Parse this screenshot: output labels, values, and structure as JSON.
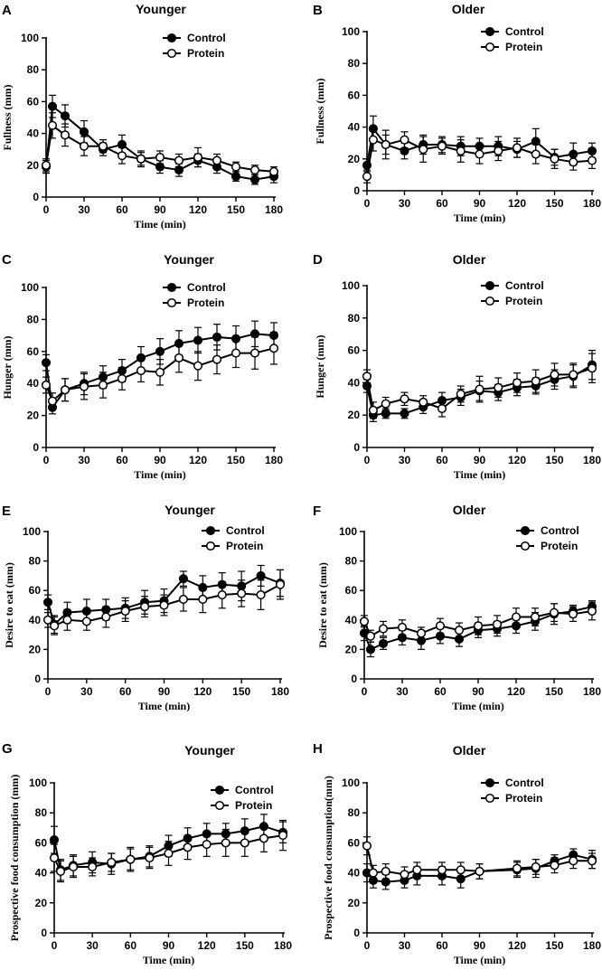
{
  "figure": {
    "legend_labels": [
      "Control",
      "Protein"
    ],
    "colors": {
      "axis": "#000000",
      "control_fill": "#000000",
      "protein_fill": "#ffffff"
    }
  },
  "chart_data": [
    {
      "id": "A",
      "letter": "A",
      "type": "line",
      "title": "Younger",
      "xlabel": "Time (min)",
      "ylabel": "Fullness (mm)",
      "xlim": [
        0,
        180
      ],
      "ylim": [
        0,
        100
      ],
      "xticks": [
        0,
        30,
        60,
        90,
        120,
        150,
        180
      ],
      "yticks": [
        0,
        20,
        40,
        60,
        80,
        100
      ],
      "x": [
        0,
        5,
        15,
        30,
        45,
        60,
        75,
        90,
        105,
        120,
        135,
        150,
        165,
        180
      ],
      "series": [
        {
          "name": "Control",
          "marker": "filled",
          "values": [
            19,
            57,
            51,
            41,
            30,
            33,
            24,
            19,
            17,
            23,
            19,
            13,
            11,
            13
          ],
          "errors": [
            4,
            7,
            7,
            7,
            4,
            6,
            5,
            4,
            4,
            4,
            4,
            3,
            3,
            4
          ]
        },
        {
          "name": "Protein",
          "marker": "open",
          "values": [
            20,
            45,
            39,
            32,
            32,
            26,
            24,
            25,
            23,
            25,
            23,
            19,
            17,
            16
          ],
          "errors": [
            4,
            8,
            7,
            6,
            4,
            5,
            4,
            4,
            4,
            6,
            4,
            3,
            3,
            3
          ]
        }
      ],
      "legend_pos": "top-right"
    },
    {
      "id": "B",
      "letter": "B",
      "type": "line",
      "title": "Older",
      "xlabel": "Time (min)",
      "ylabel": "Fullness (mm)",
      "xlim": [
        0,
        180
      ],
      "ylim": [
        0,
        100
      ],
      "xticks": [
        0,
        30,
        60,
        90,
        120,
        150,
        180
      ],
      "yticks": [
        0,
        20,
        40,
        60,
        80,
        100
      ],
      "x": [
        0,
        5,
        15,
        30,
        45,
        60,
        75,
        90,
        105,
        120,
        135,
        150,
        165,
        180
      ],
      "series": [
        {
          "name": "Control",
          "marker": "filled",
          "values": [
            16,
            39,
            29,
            25,
            29,
            29,
            28,
            28,
            28,
            26,
            31,
            21,
            23,
            25
          ],
          "errors": [
            4,
            8,
            6,
            5,
            6,
            5,
            6,
            5,
            6,
            5,
            8,
            5,
            7,
            5
          ]
        },
        {
          "name": "Protein",
          "marker": "open",
          "values": [
            9,
            32,
            29,
            32,
            26,
            28,
            25,
            23,
            25,
            27,
            23,
            20,
            18,
            19
          ],
          "errors": [
            4,
            7,
            9,
            5,
            8,
            5,
            7,
            6,
            6,
            6,
            6,
            6,
            5,
            5
          ]
        }
      ],
      "legend_pos": "top-right"
    },
    {
      "id": "C",
      "letter": "C",
      "type": "line",
      "title": "Younger",
      "xlabel": "Time (min)",
      "ylabel": "Hunger (mm)",
      "xlim": [
        0,
        180
      ],
      "ylim": [
        0,
        100
      ],
      "xticks": [
        0,
        30,
        60,
        90,
        120,
        150,
        180
      ],
      "yticks": [
        0,
        20,
        40,
        60,
        80,
        100
      ],
      "x": [
        0,
        5,
        15,
        30,
        45,
        60,
        75,
        90,
        105,
        120,
        135,
        150,
        165,
        180
      ],
      "series": [
        {
          "name": "Control",
          "marker": "filled",
          "values": [
            53,
            25,
            36,
            40,
            44,
            48,
            56,
            60,
            65,
            67,
            69,
            68,
            71,
            70
          ],
          "errors": [
            5,
            4,
            7,
            7,
            7,
            7,
            7,
            8,
            8,
            8,
            8,
            8,
            8,
            8
          ]
        },
        {
          "name": "Protein",
          "marker": "open",
          "values": [
            39,
            29,
            36,
            38,
            39,
            43,
            48,
            47,
            56,
            51,
            55,
            59,
            59,
            62
          ],
          "errors": [
            5,
            5,
            7,
            8,
            8,
            7,
            7,
            8,
            9,
            9,
            9,
            9,
            10,
            10
          ]
        }
      ],
      "legend_pos": "top-right"
    },
    {
      "id": "D",
      "letter": "D",
      "type": "line",
      "title": "Older",
      "xlabel": "Time (min)",
      "ylabel": "Hunger (mm)",
      "xlim": [
        0,
        180
      ],
      "ylim": [
        0,
        100
      ],
      "xticks": [
        0,
        30,
        60,
        90,
        120,
        150,
        180
      ],
      "yticks": [
        0,
        20,
        40,
        60,
        80,
        100
      ],
      "x": [
        0,
        5,
        15,
        30,
        45,
        60,
        75,
        90,
        105,
        120,
        135,
        150,
        165,
        180
      ],
      "series": [
        {
          "name": "Control",
          "marker": "filled",
          "values": [
            38,
            20,
            21,
            21,
            25,
            29,
            31,
            35,
            34,
            37,
            38,
            42,
            44,
            51
          ],
          "errors": [
            4,
            4,
            3,
            3,
            4,
            5,
            5,
            6,
            5,
            5,
            5,
            6,
            7,
            9
          ]
        },
        {
          "name": "Protein",
          "marker": "open",
          "values": [
            44,
            23,
            27,
            30,
            28,
            24,
            33,
            36,
            37,
            40,
            41,
            45,
            45,
            49
          ],
          "errors": [
            4,
            5,
            4,
            4,
            4,
            5,
            5,
            8,
            6,
            6,
            7,
            7,
            7,
            9
          ]
        }
      ],
      "legend_pos": "top-right"
    },
    {
      "id": "E",
      "letter": "E",
      "type": "line",
      "title": "Younger",
      "xlabel": "Time (min)",
      "ylabel": "Desire to eat (mm)",
      "xlim": [
        0,
        180
      ],
      "ylim": [
        0,
        100
      ],
      "xticks": [
        0,
        30,
        60,
        90,
        120,
        150,
        180
      ],
      "yticks": [
        0,
        20,
        40,
        60,
        80,
        100
      ],
      "x": [
        0,
        5,
        15,
        30,
        45,
        60,
        75,
        90,
        105,
        120,
        135,
        150,
        165,
        180
      ],
      "series": [
        {
          "name": "Control",
          "marker": "filled",
          "values": [
            52,
            37,
            45,
            46,
            47,
            48,
            52,
            53,
            68,
            62,
            64,
            63,
            70,
            65
          ],
          "errors": [
            5,
            6,
            7,
            8,
            7,
            7,
            8,
            8,
            5,
            8,
            8,
            10,
            7,
            9
          ]
        },
        {
          "name": "Protein",
          "marker": "open",
          "values": [
            40,
            36,
            40,
            39,
            42,
            46,
            49,
            50,
            54,
            54,
            57,
            58,
            57,
            64
          ],
          "errors": [
            5,
            6,
            7,
            6,
            7,
            7,
            7,
            7,
            8,
            9,
            9,
            9,
            10,
            10
          ]
        }
      ],
      "legend_pos": "top-right"
    },
    {
      "id": "F",
      "letter": "F",
      "type": "line",
      "title": "Older",
      "xlabel": "Time (min)",
      "ylabel": "Desire to eat (mm)",
      "xlim": [
        0,
        180
      ],
      "ylim": [
        0,
        100
      ],
      "xticks": [
        0,
        30,
        60,
        90,
        120,
        150,
        180
      ],
      "yticks": [
        0,
        20,
        40,
        60,
        80,
        100
      ],
      "x": [
        0,
        5,
        15,
        30,
        45,
        60,
        75,
        90,
        105,
        120,
        135,
        150,
        165,
        180
      ],
      "series": [
        {
          "name": "Control",
          "marker": "filled",
          "values": [
            31,
            20,
            24,
            28,
            26,
            29,
            27,
            33,
            34,
            36,
            39,
            44,
            46,
            49
          ],
          "errors": [
            5,
            5,
            4,
            5,
            6,
            5,
            5,
            5,
            5,
            5,
            6,
            7,
            4,
            4
          ]
        },
        {
          "name": "Protein",
          "marker": "open",
          "values": [
            39,
            29,
            34,
            35,
            31,
            36,
            33,
            36,
            37,
            42,
            42,
            45,
            44,
            46
          ],
          "errors": [
            4,
            4,
            5,
            5,
            4,
            5,
            5,
            6,
            6,
            6,
            6,
            6,
            5,
            6
          ]
        }
      ],
      "legend_pos": "top-right"
    },
    {
      "id": "G",
      "letter": "G",
      "type": "line",
      "title": "Younger",
      "xlabel": "Time (min)",
      "ylabel": "Prospective food consumption (mm)",
      "xlim": [
        0,
        180
      ],
      "ylim": [
        0,
        100
      ],
      "xticks": [
        0,
        30,
        60,
        90,
        120,
        150,
        180
      ],
      "yticks": [
        0,
        20,
        40,
        60,
        80,
        100
      ],
      "x": [
        0,
        5,
        15,
        30,
        45,
        60,
        75,
        90,
        105,
        120,
        135,
        150,
        165,
        180
      ],
      "series": [
        {
          "name": "Control",
          "marker": "filled",
          "values": [
            62,
            42,
            45,
            47,
            46,
            49,
            51,
            58,
            63,
            66,
            66,
            68,
            71,
            67
          ],
          "errors": [
            9,
            7,
            7,
            7,
            7,
            8,
            7,
            7,
            7,
            7,
            7,
            8,
            8,
            7
          ]
        },
        {
          "name": "Protein",
          "marker": "open",
          "values": [
            50,
            41,
            44,
            44,
            47,
            49,
            50,
            53,
            57,
            59,
            60,
            60,
            63,
            65
          ],
          "errors": [
            9,
            7,
            7,
            6,
            6,
            7,
            7,
            8,
            8,
            8,
            9,
            9,
            9,
            10
          ]
        }
      ],
      "legend_pos": "top-right"
    },
    {
      "id": "H",
      "letter": "H",
      "type": "line",
      "title": "Older",
      "xlabel": "Time (min)",
      "ylabel": "Prospective food consumption(mm)",
      "xlim": [
        0,
        180
      ],
      "ylim": [
        0,
        100
      ],
      "xticks": [
        0,
        30,
        60,
        90,
        120,
        150,
        180
      ],
      "yticks": [
        0,
        20,
        40,
        60,
        80,
        100
      ],
      "x": [
        0,
        5,
        15,
        30,
        40,
        60,
        75,
        90,
        120,
        135,
        150,
        165,
        180
      ],
      "series": [
        {
          "name": "Control",
          "marker": "filled",
          "values": [
            40,
            35,
            34,
            35,
            38,
            38,
            36,
            41,
            42,
            43,
            48,
            52,
            49
          ],
          "errors": [
            6,
            5,
            5,
            5,
            6,
            6,
            6,
            5,
            5,
            6,
            4,
            4,
            6
          ]
        },
        {
          "name": "Protein",
          "marker": "open",
          "values": [
            58,
            40,
            41,
            39,
            42,
            42,
            42,
            41,
            43,
            44,
            45,
            48,
            48
          ],
          "errors": [
            6,
            5,
            5,
            5,
            5,
            5,
            5,
            5,
            5,
            5,
            5,
            5,
            5
          ]
        }
      ],
      "legend_pos": "top-right"
    }
  ]
}
